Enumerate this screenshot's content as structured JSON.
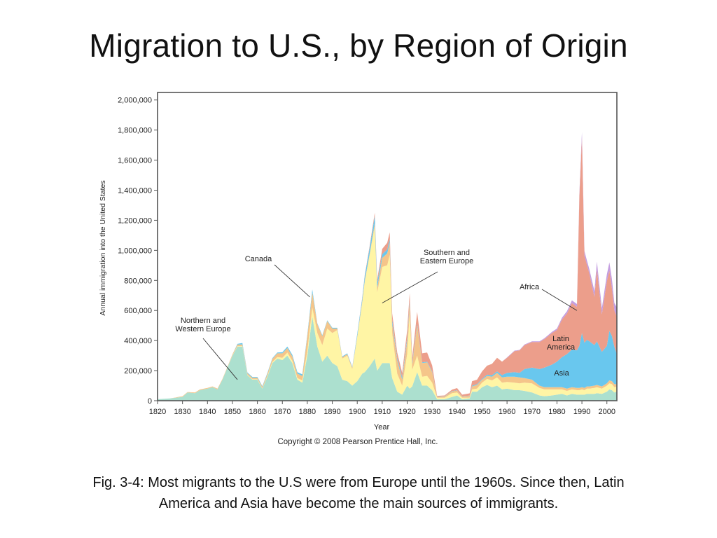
{
  "slide": {
    "title": "Migration to U.S., by Region of Origin",
    "caption_line1": "Fig. 3-4: Most migrants to the U.S were from Europe until the 1960s.  Since then, Latin",
    "caption_line2": "America and Asia have become the main sources of immigrants."
  },
  "chart_data": {
    "type": "area",
    "stacked": true,
    "title": "",
    "xlabel": "Year",
    "ylabel": "Annual immigration into the United States",
    "copyright": "Copyright © 2008 Pearson Prentice Hall, Inc.",
    "xlim": [
      1820,
      2004
    ],
    "ylim": [
      0,
      2050000
    ],
    "x_ticks": [
      1820,
      1830,
      1840,
      1850,
      1860,
      1870,
      1880,
      1890,
      1900,
      1910,
      1920,
      1930,
      1940,
      1950,
      1960,
      1970,
      1980,
      1990,
      2000
    ],
    "y_ticks": [
      0,
      200000,
      400000,
      600000,
      800000,
      1000000,
      1200000,
      1400000,
      1600000,
      1800000,
      2000000
    ],
    "y_tick_labels": [
      "0",
      "200,000",
      "400,000",
      "600,000",
      "800,000",
      "1,000,000",
      "1,200,000",
      "1,400,000",
      "1,600,000",
      "1,800,000",
      "2,000,000"
    ],
    "grid": false,
    "legend": "none",
    "annotations": [
      {
        "text": [
          "Northern and",
          "Western Europe"
        ],
        "target": [
          1852,
          140000
        ],
        "anchor": "above-left"
      },
      {
        "text": [
          "Canada"
        ],
        "target": [
          1881,
          690000
        ],
        "anchor": "above-left"
      },
      {
        "text": [
          "Southern and",
          "Eastern Europe"
        ],
        "target": [
          1910,
          650000
        ],
        "anchor": "above-right"
      },
      {
        "text": [
          "Africa"
        ],
        "target": [
          1988,
          600000
        ],
        "anchor": "above-left"
      },
      {
        "text": [
          "Latin",
          "America"
        ],
        "target": null,
        "anchor": "inside"
      },
      {
        "text": [
          "Asia"
        ],
        "target": null,
        "anchor": "inside"
      }
    ],
    "x": [
      1820,
      1825,
      1830,
      1832,
      1835,
      1837,
      1840,
      1842,
      1844,
      1846,
      1848,
      1850,
      1852,
      1854,
      1856,
      1858,
      1860,
      1862,
      1864,
      1866,
      1868,
      1870,
      1872,
      1874,
      1876,
      1878,
      1880,
      1882,
      1884,
      1886,
      1888,
      1890,
      1892,
      1894,
      1896,
      1898,
      1900,
      1902,
      1903,
      1905,
      1907,
      1908,
      1910,
      1912,
      1913,
      1914,
      1916,
      1918,
      1920,
      1921,
      1922,
      1924,
      1926,
      1928,
      1930,
      1932,
      1935,
      1938,
      1940,
      1942,
      1945,
      1946,
      1948,
      1950,
      1952,
      1954,
      1956,
      1958,
      1960,
      1963,
      1965,
      1967,
      1970,
      1973,
      1975,
      1978,
      1980,
      1982,
      1984,
      1986,
      1988,
      1989,
      1990,
      1991,
      1992,
      1993,
      1995,
      1996,
      1998,
      2000,
      2001,
      2002,
      2003,
      2004
    ],
    "series": [
      {
        "name": "Northern and Western Europe",
        "color": "#ace0cf",
        "values": [
          10000,
          15000,
          25000,
          55000,
          50000,
          70000,
          80000,
          90000,
          75000,
          140000,
          220000,
          300000,
          360000,
          360000,
          170000,
          140000,
          140000,
          80000,
          160000,
          250000,
          280000,
          270000,
          300000,
          250000,
          140000,
          120000,
          300000,
          560000,
          360000,
          260000,
          300000,
          250000,
          230000,
          140000,
          130000,
          100000,
          130000,
          180000,
          190000,
          230000,
          280000,
          200000,
          250000,
          250000,
          250000,
          150000,
          60000,
          40000,
          100000,
          80000,
          95000,
          190000,
          100000,
          100000,
          70000,
          10000,
          10000,
          25000,
          35000,
          10000,
          15000,
          60000,
          60000,
          90000,
          105000,
          90000,
          100000,
          75000,
          80000,
          70000,
          70000,
          65000,
          55000,
          35000,
          30000,
          35000,
          40000,
          45000,
          35000,
          45000,
          40000,
          40000,
          40000,
          40000,
          45000,
          45000,
          45000,
          50000,
          45000,
          60000,
          75000,
          70000,
          55000,
          60000
        ]
      },
      {
        "name": "Southern and Eastern Europe",
        "color": "#fff5a5",
        "values": [
          0,
          0,
          0,
          0,
          0,
          0,
          0,
          0,
          0,
          0,
          0,
          2000,
          3000,
          4000,
          3000,
          3000,
          3000,
          2000,
          5000,
          8000,
          10000,
          15000,
          20000,
          15000,
          10000,
          15000,
          30000,
          60000,
          90000,
          110000,
          180000,
          200000,
          240000,
          140000,
          170000,
          110000,
          290000,
          470000,
          600000,
          740000,
          880000,
          520000,
          640000,
          650000,
          720000,
          300000,
          120000,
          60000,
          210000,
          500000,
          110000,
          110000,
          60000,
          65000,
          50000,
          10000,
          10000,
          25000,
          20000,
          10000,
          5000,
          15000,
          20000,
          30000,
          40000,
          45000,
          55000,
          45000,
          45000,
          50000,
          45000,
          55000,
          60000,
          50000,
          45000,
          40000,
          35000,
          30000,
          30000,
          30000,
          30000,
          30000,
          35000,
          30000,
          35000,
          35000,
          40000,
          40000,
          35000,
          40000,
          40000,
          40000,
          35000,
          35000
        ]
      },
      {
        "name": "Canada",
        "color": "#f5c58a",
        "values": [
          0,
          0,
          5000,
          3000,
          5000,
          5000,
          5000,
          5000,
          5000,
          5000,
          5000,
          7000,
          10000,
          10000,
          10000,
          10000,
          10000,
          10000,
          15000,
          20000,
          25000,
          30000,
          30000,
          30000,
          30000,
          30000,
          100000,
          100000,
          60000,
          60000,
          50000,
          30000,
          10000,
          10000,
          10000,
          10000,
          10000,
          10000,
          10000,
          10000,
          20000,
          30000,
          60000,
          80000,
          80000,
          60000,
          90000,
          40000,
          90000,
          70000,
          40000,
          200000,
          90000,
          90000,
          70000,
          5000,
          8000,
          12000,
          12000,
          8000,
          12000,
          20000,
          25000,
          20000,
          20000,
          25000,
          30000,
          35000,
          35000,
          40000,
          40000,
          30000,
          25000,
          15000,
          15000,
          15000,
          15000,
          15000,
          15000,
          15000,
          15000,
          15000,
          15000,
          15000,
          15000,
          15000,
          15000,
          15000,
          15000,
          15000,
          20000,
          20000,
          20000,
          15000
        ]
      },
      {
        "name": "Asia",
        "color": "#69c7ee",
        "values": [
          0,
          0,
          0,
          0,
          0,
          0,
          0,
          0,
          0,
          0,
          0,
          0,
          5000,
          10000,
          5000,
          5000,
          5000,
          5000,
          5000,
          5000,
          5000,
          8000,
          10000,
          10000,
          10000,
          10000,
          10000,
          20000,
          5000,
          5000,
          5000,
          5000,
          5000,
          5000,
          5000,
          5000,
          15000,
          20000,
          30000,
          40000,
          50000,
          35000,
          25000,
          25000,
          25000,
          25000,
          15000,
          15000,
          20000,
          15000,
          10000,
          10000,
          5000,
          5000,
          5000,
          2000,
          2000,
          2000,
          2000,
          2000,
          2000,
          5000,
          5000,
          5000,
          8000,
          10000,
          10000,
          15000,
          25000,
          30000,
          30000,
          60000,
          80000,
          110000,
          130000,
          150000,
          170000,
          200000,
          230000,
          250000,
          250000,
          280000,
          360000,
          300000,
          310000,
          300000,
          270000,
          290000,
          230000,
          250000,
          330000,
          300000,
          250000,
          200000
        ]
      },
      {
        "name": "Latin America",
        "color": "#ec9e8b",
        "values": [
          0,
          0,
          0,
          0,
          0,
          0,
          0,
          0,
          0,
          0,
          0,
          0,
          0,
          0,
          0,
          0,
          0,
          0,
          0,
          0,
          0,
          0,
          0,
          0,
          0,
          0,
          0,
          0,
          0,
          0,
          0,
          0,
          0,
          0,
          0,
          0,
          0,
          5000,
          5000,
          10000,
          20000,
          20000,
          35000,
          45000,
          45000,
          45000,
          35000,
          30000,
          50000,
          50000,
          30000,
          80000,
          60000,
          60000,
          40000,
          5000,
          5000,
          10000,
          15000,
          10000,
          15000,
          30000,
          30000,
          50000,
          60000,
          75000,
          90000,
          90000,
          100000,
          140000,
          150000,
          160000,
          170000,
          180000,
          190000,
          210000,
          210000,
          250000,
          270000,
          310000,
          290000,
          1000000,
          1300000,
          580000,
          500000,
          450000,
          320000,
          480000,
          250000,
          430000,
          400000,
          320000,
          240000,
          250000
        ]
      },
      {
        "name": "Africa",
        "color": "#c49ee0",
        "values": [
          0,
          0,
          0,
          0,
          0,
          0,
          0,
          0,
          0,
          0,
          0,
          0,
          0,
          0,
          0,
          0,
          0,
          0,
          0,
          0,
          0,
          0,
          0,
          0,
          0,
          0,
          0,
          0,
          0,
          0,
          0,
          0,
          0,
          0,
          0,
          0,
          0,
          0,
          0,
          0,
          0,
          0,
          0,
          0,
          0,
          0,
          0,
          0,
          0,
          0,
          0,
          0,
          0,
          0,
          0,
          0,
          0,
          0,
          0,
          0,
          0,
          0,
          0,
          0,
          0,
          0,
          0,
          0,
          3000,
          3000,
          3000,
          4000,
          5000,
          5000,
          6000,
          8000,
          10000,
          12000,
          15000,
          17000,
          18000,
          20000,
          36000,
          30000,
          28000,
          28000,
          40000,
          50000,
          40000,
          45000,
          55000,
          60000,
          50000,
          60000
        ]
      }
    ]
  }
}
